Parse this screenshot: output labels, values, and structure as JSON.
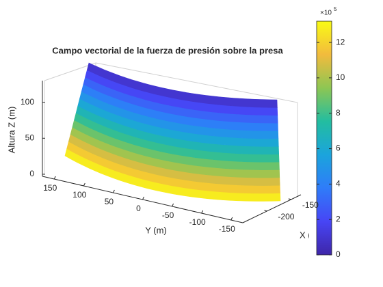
{
  "chart_data": {
    "type": "surface",
    "title": "Campo vectorial de la fuerza de presión sobre la presa",
    "zlabel": "Altura Z (m)",
    "ylabel": "Y (m)",
    "xlabel": "X (m)",
    "zlim": [
      0,
      130
    ],
    "zticks": [
      0,
      50,
      100
    ],
    "ylim": [
      -170,
      170
    ],
    "yticks": [
      150,
      100,
      50,
      0,
      -50,
      -100,
      -150
    ],
    "xlim": [
      -250,
      -130
    ],
    "xticks": [
      -200,
      -150
    ],
    "z": [
      0,
      10,
      20,
      30,
      40,
      50,
      60,
      70,
      80,
      90,
      100,
      110,
      120,
      130
    ],
    "pressure": [
      12.75,
      11.77,
      10.79,
      9.81,
      8.83,
      7.85,
      6.87,
      5.89,
      4.9,
      3.92,
      2.94,
      1.96,
      0.98,
      0
    ],
    "colormap": [
      "#3e26a8",
      "#4745f5",
      "#2f7cf9",
      "#1ba4dc",
      "#23bda0",
      "#8dc653",
      "#f2bb3d",
      "#f9fb15"
    ],
    "colorbar": {
      "clim": [
        0,
        13.2
      ],
      "ticks": [
        0,
        2,
        4,
        6,
        8,
        10,
        12
      ],
      "multiplier": "×10",
      "exponent": "5"
    }
  }
}
